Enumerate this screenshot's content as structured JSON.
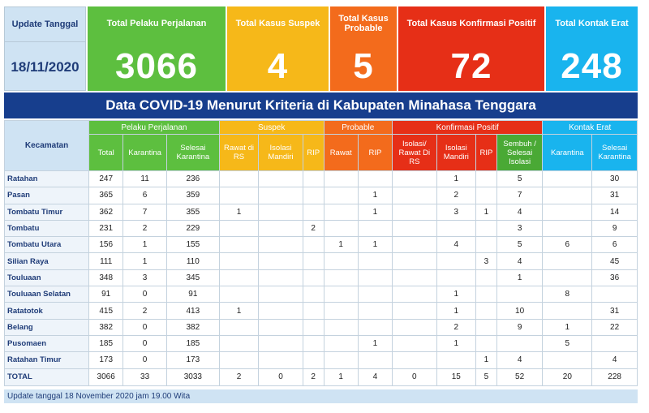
{
  "summary": {
    "update_label": "Update Tanggal",
    "update_date": "18/11/2020",
    "cards": [
      {
        "label": "Total Pelaku Perjalanan",
        "value": "3066"
      },
      {
        "label": "Total Kasus Suspek",
        "value": "4"
      },
      {
        "label": "Total Kasus Probable",
        "value": "5"
      },
      {
        "label": "Total Kasus Konfirmasi Positif",
        "value": "72"
      },
      {
        "label": "Total Kontak Erat",
        "value": "248"
      }
    ]
  },
  "title": "Data COVID-19 Menurut Kriteria di Kabupaten Minahasa Tenggara",
  "table": {
    "kecamatan_label": "Kecamatan",
    "groups": [
      "Pelaku Perjalanan",
      "Suspek",
      "Probable",
      "Konfirmasi Positif",
      "Kontak Erat"
    ],
    "columns": [
      "Total",
      "Karantina",
      "Selesai Karantina",
      "Rawat di RS",
      "Isolasi Mandiri",
      "RIP",
      "Rawat",
      "RIP",
      "Isolasi/ Rawat Di RS",
      "Isolasi Mandiri",
      "RIP",
      "Sembuh / Selesai Isolasi",
      "Karantina",
      "Selesai Karantina"
    ],
    "rows": [
      {
        "name": "Ratahan",
        "cells": [
          "247",
          "11",
          "236",
          "",
          "",
          "",
          "",
          "",
          "",
          "1",
          "",
          "5",
          "",
          "30"
        ]
      },
      {
        "name": "Pasan",
        "cells": [
          "365",
          "6",
          "359",
          "",
          "",
          "",
          "",
          "1",
          "",
          "2",
          "",
          "7",
          "",
          "31"
        ]
      },
      {
        "name": "Tombatu Timur",
        "cells": [
          "362",
          "7",
          "355",
          "1",
          "",
          "",
          "",
          "1",
          "",
          "3",
          "1",
          "4",
          "",
          "14"
        ]
      },
      {
        "name": "Tombatu",
        "cells": [
          "231",
          "2",
          "229",
          "",
          "",
          "2",
          "",
          "",
          "",
          "",
          "",
          "3",
          "",
          "9"
        ]
      },
      {
        "name": "Tombatu Utara",
        "cells": [
          "156",
          "1",
          "155",
          "",
          "",
          "",
          "1",
          "1",
          "",
          "4",
          "",
          "5",
          "6",
          "6"
        ]
      },
      {
        "name": "Silian Raya",
        "cells": [
          "111",
          "1",
          "110",
          "",
          "",
          "",
          "",
          "",
          "",
          "",
          "3",
          "4",
          "",
          "45"
        ]
      },
      {
        "name": "Touluaan",
        "cells": [
          "348",
          "3",
          "345",
          "",
          "",
          "",
          "",
          "",
          "",
          "",
          "",
          "1",
          "",
          "36"
        ]
      },
      {
        "name": "Touluaan Selatan",
        "cells": [
          "91",
          "0",
          "91",
          "",
          "",
          "",
          "",
          "",
          "",
          "1",
          "",
          "",
          "8",
          ""
        ]
      },
      {
        "name": "Ratatotok",
        "cells": [
          "415",
          "2",
          "413",
          "1",
          "",
          "",
          "",
          "",
          "",
          "1",
          "",
          "10",
          "",
          "31"
        ]
      },
      {
        "name": "Belang",
        "cells": [
          "382",
          "0",
          "382",
          "",
          "",
          "",
          "",
          "",
          "",
          "2",
          "",
          "9",
          "1",
          "22"
        ]
      },
      {
        "name": "Pusomaen",
        "cells": [
          "185",
          "0",
          "185",
          "",
          "",
          "",
          "",
          "1",
          "",
          "1",
          "",
          "",
          "5",
          ""
        ]
      },
      {
        "name": "Ratahan Timur",
        "cells": [
          "173",
          "0",
          "173",
          "",
          "",
          "",
          "",
          "",
          "",
          "",
          "1",
          "4",
          "",
          "4"
        ]
      }
    ],
    "total": {
      "name": "TOTAL",
      "cells": [
        "3066",
        "33",
        "3033",
        "2",
        "0",
        "2",
        "1",
        "4",
        "0",
        "15",
        "5",
        "52",
        "20",
        "228"
      ]
    }
  },
  "footer": "Update tanggal 18 November 2020 jam 19.00 Wita",
  "colors": {
    "green": "#5dbf3f",
    "yellow": "#f6b819",
    "orange": "#f36b1c",
    "red": "#e62f17",
    "blue": "#19b4ee",
    "navy": "#173e8d",
    "lightblue": "#cfe3f3"
  }
}
